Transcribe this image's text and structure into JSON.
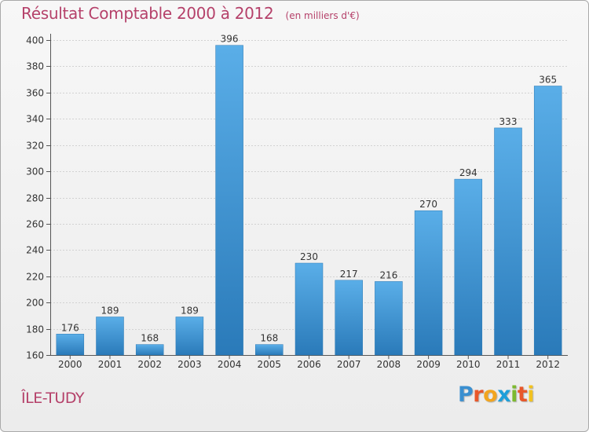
{
  "chart_data": {
    "type": "bar",
    "title": "Résultat Comptable 2000 à 2012",
    "unit_note": "(en milliers d'€)",
    "categories": [
      "2000",
      "2001",
      "2002",
      "2003",
      "2004",
      "2005",
      "2006",
      "2007",
      "2008",
      "2009",
      "2010",
      "2011",
      "2012"
    ],
    "values": [
      176,
      189,
      168,
      189,
      396,
      168,
      230,
      217,
      216,
      270,
      294,
      333,
      365
    ],
    "ylim": [
      160,
      400
    ],
    "yticks": [
      160,
      180,
      200,
      220,
      240,
      260,
      280,
      300,
      320,
      340,
      360,
      380,
      400
    ],
    "xlabel": "",
    "ylabel": "",
    "grid": true,
    "bar_color_top": "#5aaee8",
    "bar_color_bottom": "#2a7ab9"
  },
  "footer": {
    "city": "ÎLE-TUDY",
    "brand_letters": [
      "P",
      "r",
      "o",
      "x",
      "i",
      "t",
      "i"
    ],
    "brand_colors": [
      "#3a8fd0",
      "#e8572a",
      "#f2a51f",
      "#1f9fd9",
      "#7dba2f",
      "#e8572a",
      "#f2c21f"
    ]
  }
}
